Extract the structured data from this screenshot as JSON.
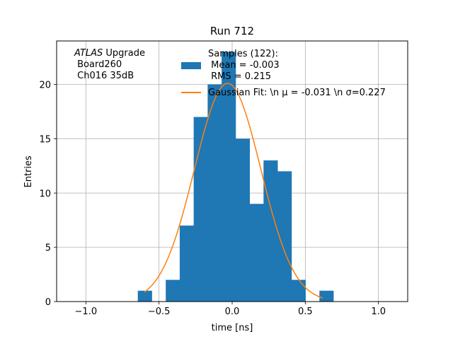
{
  "chart_data": {
    "type": "bar",
    "title": "Run 712",
    "xlabel": "time [ns]",
    "ylabel": "Entries",
    "xlim": [
      -1.2,
      1.2
    ],
    "ylim": [
      0,
      24
    ],
    "xticks": [
      -1.0,
      -0.5,
      0.0,
      0.5,
      1.0
    ],
    "xtick_labels": [
      "−1.0",
      "−0.5",
      "0.0",
      "0.5",
      "1.0"
    ],
    "yticks": [
      0,
      5,
      10,
      15,
      20
    ],
    "ytick_labels": [
      "0",
      "5",
      "10",
      "15",
      "20"
    ],
    "grid": true,
    "legend_placement": "top-right",
    "histogram": {
      "name": "Samples (122):\n Mean = -0.003\n RMS = 0.215",
      "color": "#1f77b4",
      "bin_edges": [
        -0.645,
        -0.5495,
        -0.454,
        -0.3585,
        -0.263,
        -0.1675,
        -0.072,
        0.0235,
        0.119,
        0.2145,
        0.31,
        0.4055,
        0.501,
        0.5965,
        0.692
      ],
      "bins": [
        {
          "x0": -0.645,
          "x1": -0.5495,
          "count": 1
        },
        {
          "x0": -0.5495,
          "x1": -0.454,
          "count": 0
        },
        {
          "x0": -0.454,
          "x1": -0.3585,
          "count": 2
        },
        {
          "x0": -0.3585,
          "x1": -0.263,
          "count": 7
        },
        {
          "x0": -0.263,
          "x1": -0.1675,
          "count": 17
        },
        {
          "x0": -0.1675,
          "x1": -0.072,
          "count": 20
        },
        {
          "x0": -0.072,
          "x1": 0.0235,
          "count": 23
        },
        {
          "x0": 0.0235,
          "x1": 0.119,
          "count": 15
        },
        {
          "x0": 0.119,
          "x1": 0.2145,
          "count": 9
        },
        {
          "x0": 0.2145,
          "x1": 0.31,
          "count": 13
        },
        {
          "x0": 0.31,
          "x1": 0.4055,
          "count": 12
        },
        {
          "x0": 0.4055,
          "x1": 0.501,
          "count": 2
        },
        {
          "x0": 0.501,
          "x1": 0.5965,
          "count": 0
        },
        {
          "x0": 0.5965,
          "x1": 0.692,
          "count": 1
        }
      ]
    },
    "fit": {
      "name": "Gaussian Fit: \\n μ = -0.031 \\n σ=0.227",
      "color": "#ff7f0e",
      "type": "gaussian",
      "amplitude": 20.1,
      "mu": -0.031,
      "sigma": 0.227,
      "x_range": [
        -0.6,
        0.62
      ]
    },
    "annotations": [
      {
        "text_italic": "ATLAS",
        "text": " Upgrade",
        "line2": " Board260",
        "line3": " Ch016 35dB"
      }
    ]
  }
}
